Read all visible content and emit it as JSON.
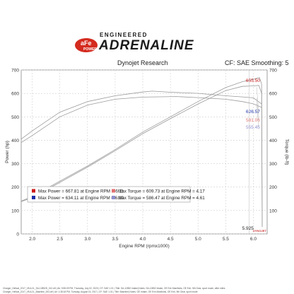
{
  "header": {
    "brand_badge": "aFe POWER",
    "brand_top": "ENGINEERED",
    "brand_main": "ADRENALINE",
    "left": "Dynojet Research",
    "right": "CF: SAE Smoothing: 5"
  },
  "colors": {
    "series1": "#cc1b1b",
    "series2": "#1a2fa8",
    "series3": "#e07070",
    "series4": "#8f8fd0",
    "brand_red": "#d42b1f"
  },
  "footer": {
    "line1": "Charger_Hellcat_2017_V8-6.2L_SA-12852D_012.drf  | Air: 9:55:09 PM, Thursday, July 02, 2020  | CF: SAE 1.01  | Title: SA-12852 Intake|  Notes: SA-12852 Intake, OE Exh Manifolds, OE Exh, 5th Gear, sport mode, after miles",
    "line2": "Charger_Hellcat_2017_V8-6.2L_Baseline_003.drf  | Air: 1:38:18 PM, Tuesday, August 15, 2017  | CF: SAE 1.01  | Title: Baseline|  Notes: OE Intake, OE Exh Manifolds, OE Exh, 5th Gear, sport mode"
  },
  "chart_data": {
    "type": "line",
    "xlabel": "Engine RPM (rpmx1000)",
    "ylabel_left": "Power (hp)",
    "ylabel_right": "Torque (lb-ft)",
    "xlim": [
      1.8,
      6.25
    ],
    "ylim": [
      0,
      700
    ],
    "x_ticks": [
      2.0,
      2.5,
      3.0,
      3.5,
      4.0,
      4.5,
      5.0,
      5.5,
      6.0
    ],
    "x_tick_labels": [
      "2.0",
      "2.5",
      "3.0",
      "3.5",
      "4.0",
      "4.5",
      "5.0",
      "5.5",
      "6.0"
    ],
    "y_ticks": [
      0,
      100,
      200,
      300,
      400,
      500,
      600,
      700
    ],
    "y_tick_labels": [
      "0",
      "100",
      "200",
      "300",
      "400",
      "500",
      "600",
      "700"
    ],
    "y_right_ticks": [
      100,
      200,
      300,
      400,
      500,
      600,
      700
    ],
    "y_right_tick_labels": [
      "100",
      "200",
      "300",
      "400",
      "500",
      "600",
      "700"
    ],
    "grid": true,
    "series": [
      {
        "name": "Power",
        "x": [
          1.8,
          2.0,
          2.5,
          3.0,
          3.5,
          4.0,
          4.5,
          5.0,
          5.5,
          5.8,
          6.0,
          6.11,
          6.15,
          6.16
        ],
        "y": [
          140,
          160,
          225,
          290,
          360,
          435,
          500,
          565,
          625,
          650,
          660,
          667.81,
          640,
          30
        ]
      },
      {
        "name": "Power",
        "x": [
          1.8,
          2.0,
          2.5,
          3.0,
          3.5,
          4.0,
          4.5,
          5.0,
          5.5,
          5.8,
          6.0,
          6.1,
          6.15,
          6.16
        ],
        "y": [
          138,
          155,
          220,
          285,
          355,
          428,
          492,
          555,
          612,
          630,
          632,
          634.11,
          600,
          30
        ]
      },
      {
        "name": "Torque",
        "x": [
          1.8,
          2.0,
          2.5,
          3.0,
          3.5,
          4.0,
          4.17,
          4.5,
          5.0,
          5.5,
          5.8,
          6.0,
          6.15
        ],
        "y": [
          405,
          440,
          520,
          565,
          590,
          606,
          609.73,
          605,
          600,
          590,
          585,
          581.06,
          555
        ],
        "points_labeled": [
          581.06,
          655.5
        ]
      },
      {
        "name": "Torque",
        "x": [
          1.8,
          2.0,
          2.5,
          3.0,
          3.5,
          4.0,
          4.61,
          5.0,
          5.5,
          5.8,
          6.0,
          6.15
        ],
        "y": [
          390,
          420,
          500,
          550,
          575,
          584,
          586.47,
          582,
          575,
          565,
          555.45,
          540
        ]
      }
    ],
    "callouts": [
      {
        "value": "655.50",
        "x": 5.85,
        "y": 655.5,
        "color": "#cc1b1b"
      },
      {
        "value": "626.57",
        "x": 5.6,
        "y": 626.57,
        "color": "#1a2fa8"
      },
      {
        "value": "581.06",
        "x": 5.85,
        "y": 581.06,
        "color": "#e07070"
      },
      {
        "value": "555.45",
        "x": 5.85,
        "y": 555.45,
        "color": "#8f8fd0"
      }
    ],
    "marker_label": "5.925",
    "legend": {
      "placement": "bottom-left",
      "entries": [
        {
          "left": "Max Power = 667.81 at Engine RPM = 6.11",
          "right": "Max Torque = 609.73 at Engine RPM = 4.17"
        },
        {
          "left": "Max Power = 634.11 at Engine RPM = 6.10",
          "right": "Max Torque = 586.47 at Engine RPM = 4.61"
        }
      ]
    },
    "watermark": "DYNOJET"
  }
}
